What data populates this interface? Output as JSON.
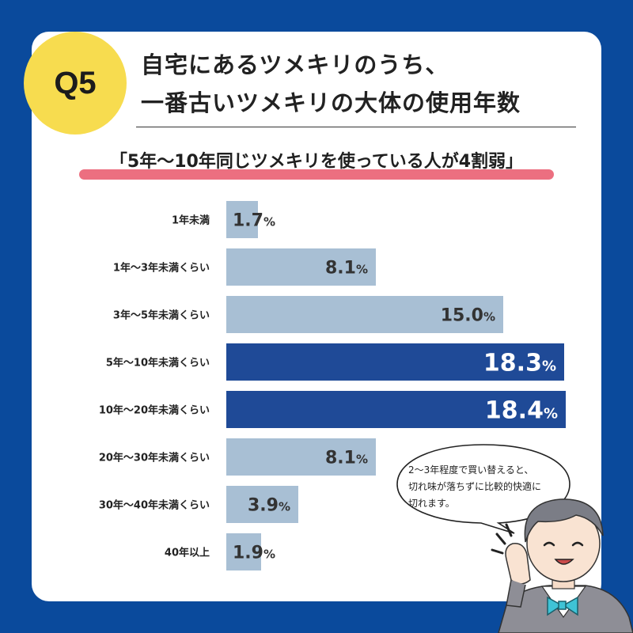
{
  "badge": {
    "label": "Q5"
  },
  "title": {
    "line1": "自宅にあるツメキリのうち、",
    "line2": "一番古いツメキリの大体の使用年数"
  },
  "subtitle": "「5年〜10年同じツメキリを使っている人が4割弱」",
  "callout": {
    "line1": "2〜3年程度で買い替えると、",
    "line2": "切れ味が落ちずに比較的快適に",
    "line3": "切れます。"
  },
  "colors": {
    "background": "#0a4a9c",
    "bar_normal": "#a8bfd4",
    "bar_highlight": "#1f4a97",
    "badge": "#f7dc4f",
    "subtitle_underline": "#ec6f80"
  },
  "chart_data": {
    "type": "bar",
    "orientation": "horizontal",
    "categories": [
      "1年未満",
      "1年〜3年未満くらい",
      "3年〜5年未満くらい",
      "5年〜10年未満くらい",
      "10年〜20年未満くらい",
      "20年〜30年未満くらい",
      "30年〜40年未満くらい",
      "40年以上"
    ],
    "values": [
      1.7,
      8.1,
      15.0,
      18.3,
      18.4,
      8.1,
      3.9,
      1.9
    ],
    "value_labels": [
      "1.7",
      "8.1",
      "15.0",
      "18.3",
      "18.4",
      "8.1",
      "3.9",
      "1.9"
    ],
    "unit": "%",
    "highlighted": [
      false,
      false,
      false,
      true,
      true,
      false,
      false,
      false
    ],
    "title": "",
    "xlabel": "",
    "ylabel": "",
    "xlim": [
      0,
      18.4
    ],
    "grid": false
  }
}
